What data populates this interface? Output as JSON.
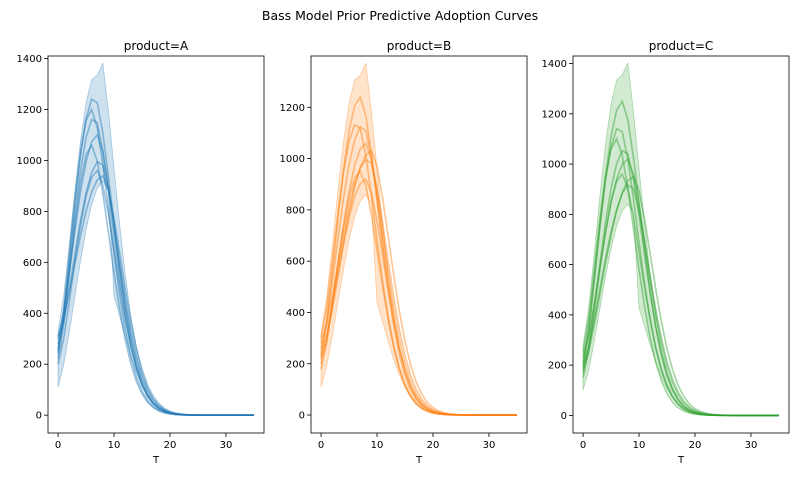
{
  "figure": {
    "suptitle": "Bass Model Prior Predictive Adoption Curves"
  },
  "chart_data": [
    {
      "type": "line",
      "title": "product=A",
      "xlabel": "T",
      "ylabel": "",
      "xlim": [
        -1.8,
        36.8
      ],
      "ylim": [
        -70,
        1410
      ],
      "xticks": [
        0,
        10,
        20,
        30
      ],
      "yticks": [
        0,
        200,
        400,
        600,
        800,
        1000,
        1200,
        1400
      ],
      "color": "#1f77b4",
      "x_range": [
        0,
        35
      ],
      "band": {
        "peak_low": 920,
        "peak_high": 1340,
        "start_low": 110,
        "start_high": 330
      },
      "series_peaks": [
        {
          "peak_t": 6.0,
          "peak": 1200,
          "start": 260
        },
        {
          "peak_t": 6.5,
          "peak": 1170,
          "start": 240
        },
        {
          "peak_t": 7.0,
          "peak": 1100,
          "start": 300
        },
        {
          "peak_t": 6.0,
          "peak": 1060,
          "start": 220
        },
        {
          "peak_t": 7.5,
          "peak": 1000,
          "start": 280
        },
        {
          "peak_t": 7.0,
          "peak": 960,
          "start": 200
        },
        {
          "peak_t": 8.0,
          "peak": 940,
          "start": 310
        },
        {
          "peak_t": 6.5,
          "peak": 1250,
          "start": 250
        }
      ]
    },
    {
      "type": "line",
      "title": "product=B",
      "xlabel": "T",
      "ylabel": "",
      "xlim": [
        -1.8,
        36.8
      ],
      "ylim": [
        -70,
        1400
      ],
      "xticks": [
        0,
        10,
        20,
        30
      ],
      "yticks": [
        0,
        200,
        400,
        600,
        800,
        1000,
        1200
      ],
      "color": "#ff7f0e",
      "x_range": [
        0,
        35
      ],
      "band": {
        "peak_low": 860,
        "peak_high": 1330,
        "start_low": 110,
        "start_high": 320
      },
      "series_peaks": [
        {
          "peak_t": 7.0,
          "peak": 1240,
          "start": 230
        },
        {
          "peak_t": 7.5,
          "peak": 1130,
          "start": 260
        },
        {
          "peak_t": 8.0,
          "peak": 1060,
          "start": 200
        },
        {
          "peak_t": 8.5,
          "peak": 1000,
          "start": 280
        },
        {
          "peak_t": 7.0,
          "peak": 950,
          "start": 180
        },
        {
          "peak_t": 8.0,
          "peak": 920,
          "start": 240
        },
        {
          "peak_t": 6.5,
          "peak": 1140,
          "start": 300
        },
        {
          "peak_t": 9.0,
          "peak": 1030,
          "start": 220
        }
      ]
    },
    {
      "type": "line",
      "title": "product=C",
      "xlabel": "T",
      "ylabel": "",
      "xlim": [
        -1.8,
        36.8
      ],
      "ylim": [
        -70,
        1430
      ],
      "xticks": [
        0,
        10,
        20,
        30
      ],
      "yticks": [
        0,
        200,
        400,
        600,
        800,
        1000,
        1200,
        1400
      ],
      "color": "#2ca02c",
      "x_range": [
        0,
        35
      ],
      "band": {
        "peak_low": 840,
        "peak_high": 1360,
        "start_low": 100,
        "start_high": 280
      },
      "series_peaks": [
        {
          "peak_t": 7.0,
          "peak": 1250,
          "start": 190
        },
        {
          "peak_t": 6.5,
          "peak": 1150,
          "start": 210
        },
        {
          "peak_t": 7.5,
          "peak": 1060,
          "start": 170
        },
        {
          "peak_t": 8.0,
          "peak": 1020,
          "start": 230
        },
        {
          "peak_t": 7.0,
          "peak": 960,
          "start": 150
        },
        {
          "peak_t": 8.5,
          "peak": 920,
          "start": 200
        },
        {
          "peak_t": 6.0,
          "peak": 1100,
          "start": 250
        },
        {
          "peak_t": 9.0,
          "peak": 950,
          "start": 180
        }
      ]
    }
  ]
}
